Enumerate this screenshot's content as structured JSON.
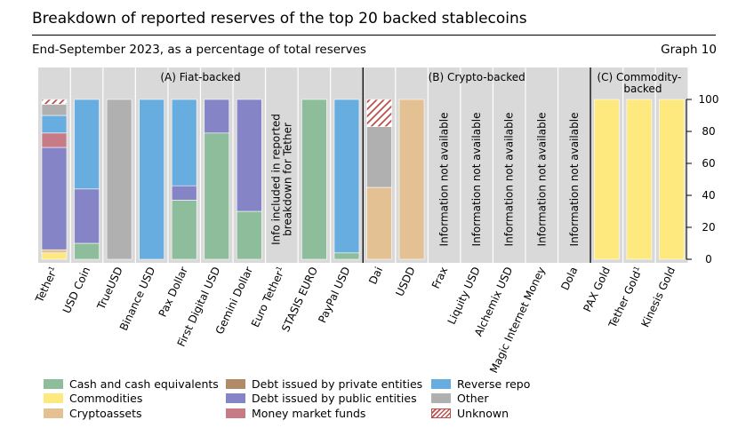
{
  "header": {
    "title": "Breakdown of reported reserves of the top 20 backed stablecoins",
    "subtitle": "End-September 2023, as a percentage of total reserves",
    "graph_number": "Graph 10"
  },
  "colors": {
    "cash": "#8dbd9a",
    "commodities": "#fde97d",
    "crypto": "#e3c192",
    "private_debt": "#b38a68",
    "public_debt": "#8484c6",
    "mmf": "#c77b86",
    "repo": "#68addf",
    "other": "#b0b0b0",
    "unknown": "#c0504d",
    "panel": "#d9d9d9"
  },
  "chart_data": {
    "type": "bar",
    "stacked": true,
    "ylim": [
      0,
      100
    ],
    "yticks": [
      0,
      20,
      40,
      60,
      80,
      100
    ],
    "y_axis_side": "right",
    "gridlines": false,
    "legend_position": "bottom",
    "panels": [
      {
        "label": "(A) Fiat-backed",
        "first": 0,
        "last": 9
      },
      {
        "label": "(B) Crypto-backed",
        "first": 10,
        "last": 16
      },
      {
        "label": "(C) Commodity-backed",
        "first": 17,
        "last": 19
      }
    ],
    "categories": [
      "Tether¹",
      "USD Coin",
      "TrueUSD",
      "Binance USD",
      "Pax Dollar",
      "First Digital USD",
      "Gemini Dollar",
      "Euro Tether¹",
      "STASIS EURO",
      "PayPal USD",
      "Dai",
      "USDD",
      "Frax",
      "Liquity USD",
      "Alchemix USD",
      "Magic Internet Money",
      "Dola",
      "PAX Gold",
      "Tether Gold¹",
      "Kinesis Gold"
    ],
    "series_keys": [
      "commodities",
      "cash",
      "crypto",
      "private_debt",
      "public_debt",
      "mmf",
      "repo",
      "other",
      "unknown"
    ],
    "series": [
      {
        "key": "cash",
        "name": "Cash and cash equivalents",
        "values": [
          0,
          10,
          0,
          0,
          37,
          79,
          30,
          0,
          100,
          4,
          0,
          0,
          0,
          0,
          0,
          0,
          0,
          0,
          0,
          0
        ]
      },
      {
        "key": "commodities",
        "name": "Commodities",
        "values": [
          4,
          0,
          0,
          0,
          0,
          0,
          0,
          0,
          0,
          0,
          0,
          0,
          0,
          0,
          0,
          0,
          0,
          100,
          100,
          100
        ]
      },
      {
        "key": "crypto",
        "name": "Cryptoassets",
        "values": [
          2,
          0,
          0,
          0,
          0,
          0,
          0,
          0,
          0,
          0,
          45,
          100,
          0,
          0,
          0,
          0,
          0,
          0,
          0,
          0
        ]
      },
      {
        "key": "private_debt",
        "name": "Debt issued by private entities",
        "values": [
          0,
          0,
          0,
          0,
          0,
          0,
          0,
          0,
          0,
          0,
          0,
          0,
          0,
          0,
          0,
          0,
          0,
          0,
          0,
          0
        ]
      },
      {
        "key": "public_debt",
        "name": "Debt issued by public entities",
        "values": [
          64,
          34,
          0,
          0,
          9,
          21,
          70,
          0,
          0,
          0,
          0,
          0,
          0,
          0,
          0,
          0,
          0,
          0,
          0,
          0
        ]
      },
      {
        "key": "mmf",
        "name": "Money market funds",
        "values": [
          9,
          0,
          0,
          0,
          0,
          0,
          0,
          0,
          0,
          0,
          0,
          0,
          0,
          0,
          0,
          0,
          0,
          0,
          0,
          0
        ]
      },
      {
        "key": "repo",
        "name": "Reverse repo",
        "values": [
          11,
          56,
          0,
          100,
          54,
          0,
          0,
          0,
          0,
          96,
          0,
          0,
          0,
          0,
          0,
          0,
          0,
          0,
          0,
          0
        ]
      },
      {
        "key": "other",
        "name": "Other",
        "values": [
          7,
          0,
          100,
          0,
          0,
          0,
          0,
          0,
          0,
          0,
          38,
          0,
          0,
          0,
          0,
          0,
          0,
          0,
          0,
          0
        ]
      },
      {
        "key": "unknown",
        "name": "Unknown",
        "values": [
          3,
          0,
          0,
          0,
          0,
          0,
          0,
          0,
          0,
          0,
          17,
          0,
          0,
          0,
          0,
          0,
          0,
          0,
          0,
          0
        ]
      }
    ],
    "bar_notes": [
      {
        "index": 7,
        "text": "Info included in reported breakdown for Tether",
        "lines": [
          "Info included in reported",
          "breakdown for Tether"
        ]
      },
      {
        "index": 12,
        "text": "Information not available"
      },
      {
        "index": 13,
        "text": "Information not available"
      },
      {
        "index": 14,
        "text": "Information not available"
      },
      {
        "index": 15,
        "text": "Information not available"
      },
      {
        "index": 16,
        "text": "Information not available"
      }
    ],
    "legend_columns": [
      [
        "cash",
        "commodities",
        "crypto"
      ],
      [
        "private_debt",
        "public_debt",
        "mmf"
      ],
      [
        "repo",
        "other",
        "unknown"
      ]
    ]
  }
}
